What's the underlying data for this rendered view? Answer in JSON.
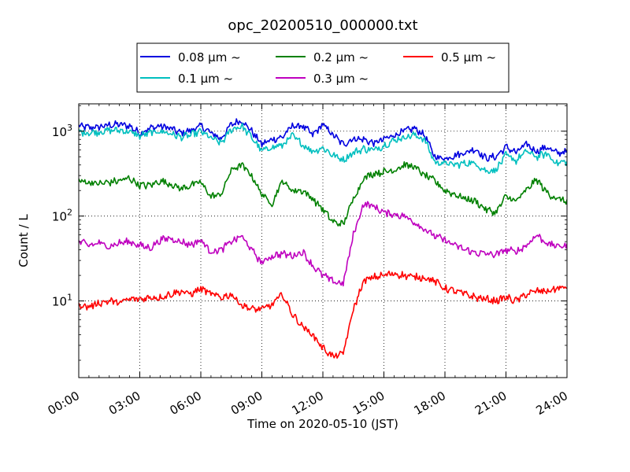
{
  "chart_data": {
    "type": "line",
    "title": "opc_20200510_000000.txt",
    "xlabel": "Time on 2020-05-10 (JST)",
    "ylabel": "Count / L",
    "y_scale": "log",
    "ylim": [
      1.25,
      2100
    ],
    "xlim": [
      "00:00",
      "24:00"
    ],
    "x_ticks": [
      "00:00",
      "03:00",
      "06:00",
      "09:00",
      "12:00",
      "15:00",
      "18:00",
      "21:00",
      "24:00"
    ],
    "y_ticks": [
      {
        "value": 10,
        "base": "10",
        "exp": "1"
      },
      {
        "value": 100,
        "base": "10",
        "exp": "2"
      },
      {
        "value": 1000,
        "base": "10",
        "exp": "3"
      }
    ],
    "grid": true,
    "legend_position": "top-center",
    "x_hours": [
      0,
      0.5,
      1,
      1.5,
      2,
      2.5,
      3,
      3.5,
      4,
      4.5,
      5,
      5.5,
      6,
      6.5,
      7,
      7.5,
      8,
      8.5,
      9,
      9.5,
      10,
      10.5,
      11,
      11.5,
      12,
      12.5,
      13,
      13.5,
      14,
      14.5,
      15,
      15.5,
      16,
      16.5,
      17,
      17.5,
      18,
      18.5,
      19,
      19.5,
      20,
      20.5,
      21,
      21.5,
      22,
      22.5,
      23,
      23.5,
      24
    ],
    "series": [
      {
        "name": "0.08 μm ~",
        "color": "#0000e0",
        "values": [
          1150,
          1100,
          1120,
          1180,
          1200,
          1150,
          950,
          1080,
          1150,
          1080,
          950,
          1020,
          1150,
          950,
          820,
          1200,
          1350,
          1000,
          700,
          800,
          850,
          1150,
          1150,
          900,
          1200,
          900,
          700,
          820,
          800,
          720,
          800,
          900,
          1000,
          1080,
          900,
          500,
          480,
          520,
          560,
          620,
          480,
          500,
          650,
          560,
          700,
          580,
          650,
          550,
          580
        ]
      },
      {
        "name": "0.1 μm ~",
        "color": "#00bfbf",
        "values": [
          980,
          960,
          980,
          1020,
          1030,
          980,
          880,
          950,
          1000,
          940,
          850,
          900,
          990,
          830,
          720,
          1050,
          1150,
          850,
          580,
          650,
          680,
          880,
          700,
          580,
          640,
          520,
          460,
          560,
          620,
          600,
          680,
          780,
          850,
          900,
          800,
          430,
          420,
          400,
          420,
          420,
          340,
          350,
          520,
          450,
          580,
          500,
          540,
          420,
          440
        ]
      },
      {
        "name": "0.2 μm ~",
        "color": "#008000",
        "values": [
          260,
          250,
          240,
          250,
          260,
          280,
          230,
          230,
          260,
          240,
          210,
          230,
          250,
          170,
          180,
          350,
          400,
          300,
          180,
          140,
          260,
          200,
          200,
          160,
          120,
          85,
          80,
          160,
          280,
          320,
          330,
          350,
          400,
          380,
          300,
          260,
          200,
          180,
          160,
          150,
          120,
          110,
          170,
          150,
          200,
          270,
          190,
          160,
          150
        ]
      },
      {
        "name": "0.3 μm ~",
        "color": "#bf00bf",
        "values": [
          50,
          45,
          48,
          44,
          48,
          50,
          45,
          42,
          52,
          55,
          50,
          46,
          52,
          38,
          40,
          50,
          58,
          40,
          28,
          34,
          36,
          34,
          38,
          26,
          20,
          17,
          16,
          60,
          140,
          130,
          110,
          105,
          100,
          85,
          70,
          58,
          52,
          45,
          40,
          37,
          36,
          35,
          40,
          38,
          45,
          60,
          48,
          44,
          45
        ]
      },
      {
        "name": "0.5 μm ~",
        "color": "#ff0000",
        "values": [
          9,
          8.5,
          9.5,
          10,
          9.5,
          10.5,
          10.5,
          11,
          11,
          12,
          13,
          12,
          14,
          12,
          11,
          12,
          9,
          8,
          8,
          9,
          12,
          7,
          5,
          4,
          2.8,
          2.2,
          2.4,
          8,
          17,
          19,
          20,
          21,
          20,
          19,
          19,
          17,
          14,
          13,
          12,
          11,
          10.5,
          10,
          11,
          10,
          12,
          13,
          13,
          14,
          14.5
        ]
      }
    ]
  }
}
